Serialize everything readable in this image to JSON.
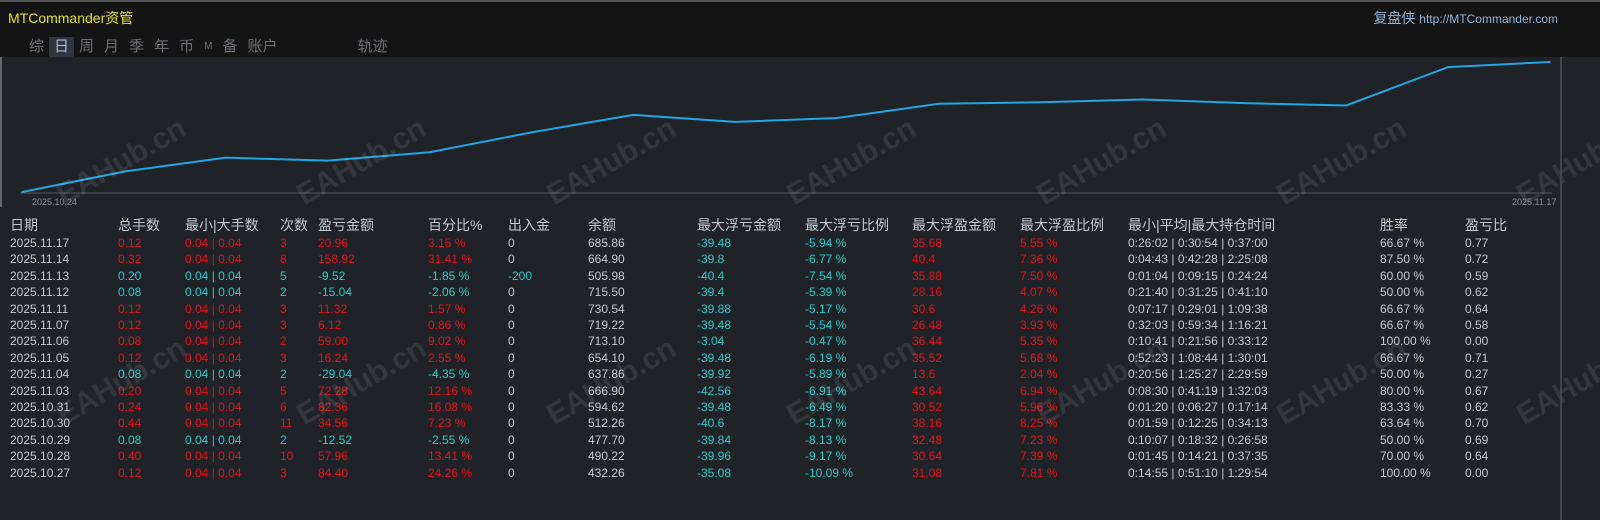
{
  "app": {
    "title": "MTCommander资管",
    "brand": "复盘侠",
    "brand_url": "http://MTCommander.com",
    "watermark": "EAHub.cn"
  },
  "tabs": [
    {
      "label": "综"
    },
    {
      "label": "日",
      "active": true
    },
    {
      "label": "周"
    },
    {
      "label": "月"
    },
    {
      "label": "季"
    },
    {
      "label": "年"
    },
    {
      "label": "币"
    },
    {
      "label": "M"
    },
    {
      "label": "备"
    },
    {
      "label": "账户"
    },
    {
      "label": "轨迹"
    }
  ],
  "colors": {
    "profit": "#e4101c",
    "loss": "#22cbcb",
    "line": "#1fa8e0",
    "title": "#e6e600"
  },
  "chart_data": {
    "type": "line",
    "start_label": "2025.10.24",
    "end_label": "2025.11.17",
    "x": [
      "2025.10.24",
      "2025.10.27",
      "2025.10.28",
      "2025.10.29",
      "2025.10.30",
      "2025.10.31",
      "2025.11.03",
      "2025.11.04",
      "2025.11.05",
      "2025.11.06",
      "2025.11.07",
      "2025.11.11",
      "2025.11.12",
      "2025.11.13",
      "2025.11.14",
      "2025.11.17"
    ],
    "y": [
      0,
      84.4,
      142.36,
      129.84,
      164.4,
      246.76,
      319.04,
      290.0,
      306.24,
      365.24,
      371.36,
      382.68,
      367.64,
      358.12,
      517.04,
      538.0
    ]
  },
  "table": {
    "headers": [
      "日期",
      "总手数",
      "最小|大手数",
      "次数",
      "盈亏金额",
      "百分比%",
      "出入金",
      "余额",
      "最大浮亏金额",
      "最大浮亏比例",
      "最大浮盈金额",
      "最大浮盈比例",
      "最小|平均|最大持仓时间",
      "胜率",
      "盈亏比"
    ],
    "rows": [
      [
        "2025.11.17",
        "0.12",
        "0.04 | 0.04",
        "3",
        "20.96",
        "3.15 %",
        "0",
        "685.86",
        "-39.48",
        "-5.94 %",
        "35.68",
        "5.55 %",
        "0:26:02 | 0:30:54 | 0:37:00",
        "66.67 %",
        "0.77"
      ],
      [
        "2025.11.14",
        "0.32",
        "0.04 | 0.04",
        "8",
        "158.92",
        "31.41 %",
        "0",
        "664.90",
        "-39.8",
        "-6.77 %",
        "40.4",
        "7.36 %",
        "0:04:43 | 0:42:28 | 2:25:08",
        "87.50 %",
        "0.72"
      ],
      [
        "2025.11.13",
        "0.20",
        "0.04 | 0.04",
        "5",
        "-9.52",
        "-1.85 %",
        "-200",
        "505.98",
        "-40.4",
        "-7.54 %",
        "35.88",
        "7.50 %",
        "0:01:04 | 0:09:15 | 0:24:24",
        "60.00 %",
        "0.59"
      ],
      [
        "2025.11.12",
        "0.08",
        "0.04 | 0.04",
        "2",
        "-15.04",
        "-2.06 %",
        "0",
        "715.50",
        "-39.4",
        "-5.39 %",
        "28.16",
        "4.07 %",
        "0:21:40 | 0:31:25 | 0:41:10",
        "50.00 %",
        "0.62"
      ],
      [
        "2025.11.11",
        "0.12",
        "0.04 | 0.04",
        "3",
        "11.32",
        "1.57 %",
        "0",
        "730.54",
        "-39.88",
        "-5.17 %",
        "30.6",
        "4.26 %",
        "0:07:17 | 0:29:01 | 1:09:38",
        "66.67 %",
        "0.64"
      ],
      [
        "2025.11.07",
        "0.12",
        "0.04 | 0.04",
        "3",
        "6.12",
        "0.86 %",
        "0",
        "719.22",
        "-39.48",
        "-5.54 %",
        "26.48",
        "3.93 %",
        "0:32:03 | 0:59:34 | 1:16:21",
        "66.67 %",
        "0.58"
      ],
      [
        "2025.11.06",
        "0.08",
        "0.04 | 0.04",
        "2",
        "59.00",
        "9.02 %",
        "0",
        "713.10",
        "-3.04",
        "-0.47 %",
        "36.44",
        "5.35 %",
        "0:10:41 | 0:21:56 | 0:33:12",
        "100.00 %",
        "0.00"
      ],
      [
        "2025.11.05",
        "0.12",
        "0.04 | 0.04",
        "3",
        "16.24",
        "2.55 %",
        "0",
        "654.10",
        "-39.48",
        "-6.19 %",
        "35.52",
        "5.68 %",
        "0:52:23 | 1:08:44 | 1:30:01",
        "66.67 %",
        "0.71"
      ],
      [
        "2025.11.04",
        "0.08",
        "0.04 | 0.04",
        "2",
        "-29.04",
        "-4.35 %",
        "0",
        "637.86",
        "-39.92",
        "-5.89 %",
        "13.6",
        "2.04 %",
        "0:20:56 | 1:25:27 | 2:29:59",
        "50.00 %",
        "0.27"
      ],
      [
        "2025.11.03",
        "0.20",
        "0.04 | 0.04",
        "5",
        "72.28",
        "12.16 %",
        "0",
        "666.90",
        "-42.56",
        "-6.91 %",
        "43.64",
        "6.94 %",
        "0:08:30 | 0:41:19 | 1:32:03",
        "80.00 %",
        "0.67"
      ],
      [
        "2025.10.31",
        "0.24",
        "0.04 | 0.04",
        "6",
        "82.36",
        "16.08 %",
        "0",
        "594.62",
        "-39.48",
        "-6.49 %",
        "30.52",
        "5.96 %",
        "0:01:20 | 0:06:27 | 0:17:14",
        "83.33 %",
        "0.62"
      ],
      [
        "2025.10.30",
        "0.44",
        "0.04 | 0.04",
        "11",
        "34.56",
        "7.23 %",
        "0",
        "512.26",
        "-40.6",
        "-8.17 %",
        "38.16",
        "8.25 %",
        "0:01:59 | 0:12:25 | 0:34:13",
        "63.64 %",
        "0.70"
      ],
      [
        "2025.10.29",
        "0.08",
        "0.04 | 0.04",
        "2",
        "-12.52",
        "-2.55 %",
        "0",
        "477.70",
        "-39.84",
        "-8.13 %",
        "32.48",
        "7.23 %",
        "0:10:07 | 0:18:32 | 0:26:58",
        "50.00 %",
        "0.69"
      ],
      [
        "2025.10.28",
        "0.40",
        "0.04 | 0.04",
        "10",
        "57.96",
        "13.41 %",
        "0",
        "490.22",
        "-39.96",
        "-9.17 %",
        "30.64",
        "7.39 %",
        "0:01:45 | 0:14:21 | 0:37:35",
        "70.00 %",
        "0.64"
      ],
      [
        "2025.10.27",
        "0.12",
        "0.04 | 0.04",
        "3",
        "84.40",
        "24.26 %",
        "0",
        "432.26",
        "-35.08",
        "-10.09 %",
        "31.08",
        "7.81 %",
        "0:14:55 | 0:51:10 | 1:29:54",
        "100.00 %",
        "0.00"
      ]
    ]
  }
}
